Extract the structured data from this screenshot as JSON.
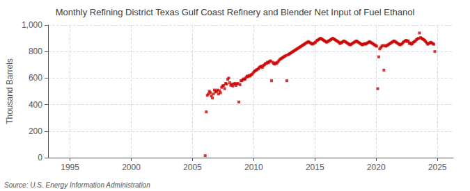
{
  "chart_data": {
    "type": "scatter",
    "title": "Monthly Refining District Texas Gulf Coast Refinery and Blender Net Input of Fuel Ethanol",
    "ylabel": "Thousand Barrels",
    "source": "Source: U.S. Energy Information Administration",
    "color": "#cc0000",
    "marker": "square",
    "grid": true,
    "xlim": [
      1993.2,
      2026.3
    ],
    "xticks": [
      1995,
      2000,
      2005,
      2010,
      2015,
      2020,
      2025
    ],
    "ylim": [
      0,
      1000
    ],
    "yticks": [
      0,
      200,
      400,
      600,
      800,
      {
        "value": 1000,
        "label": "1,000"
      }
    ],
    "x": [
      2006.04,
      2006.13,
      2006.21,
      2006.29,
      2006.38,
      2006.46,
      2006.54,
      2006.63,
      2006.71,
      2006.79,
      2006.88,
      2006.96,
      2007.04,
      2007.13,
      2007.21,
      2007.29,
      2007.38,
      2007.46,
      2007.54,
      2007.63,
      2007.71,
      2007.79,
      2007.88,
      2007.96,
      2008.04,
      2008.13,
      2008.21,
      2008.29,
      2008.38,
      2008.46,
      2008.54,
      2008.63,
      2008.71,
      2008.79,
      2008.88,
      2008.96,
      2009.04,
      2009.13,
      2009.21,
      2009.29,
      2009.38,
      2009.46,
      2009.54,
      2009.63,
      2009.71,
      2009.79,
      2009.88,
      2009.96,
      2010.04,
      2010.13,
      2010.21,
      2010.29,
      2010.38,
      2010.46,
      2010.54,
      2010.63,
      2010.71,
      2010.79,
      2010.88,
      2010.96,
      2011.04,
      2011.13,
      2011.21,
      2011.29,
      2011.38,
      2011.46,
      2011.54,
      2011.63,
      2011.71,
      2011.79,
      2011.88,
      2011.96,
      2012.04,
      2012.13,
      2012.21,
      2012.29,
      2012.38,
      2012.46,
      2012.54,
      2012.63,
      2012.71,
      2012.79,
      2012.88,
      2012.96,
      2013.04,
      2013.13,
      2013.21,
      2013.29,
      2013.38,
      2013.46,
      2013.54,
      2013.63,
      2013.71,
      2013.79,
      2013.88,
      2013.96,
      2014.04,
      2014.13,
      2014.21,
      2014.29,
      2014.38,
      2014.46,
      2014.54,
      2014.63,
      2014.71,
      2014.79,
      2014.88,
      2014.96,
      2015.04,
      2015.13,
      2015.21,
      2015.29,
      2015.38,
      2015.46,
      2015.54,
      2015.63,
      2015.71,
      2015.79,
      2015.88,
      2015.96,
      2016.04,
      2016.13,
      2016.21,
      2016.29,
      2016.38,
      2016.46,
      2016.54,
      2016.63,
      2016.71,
      2016.79,
      2016.88,
      2016.96,
      2017.04,
      2017.13,
      2017.21,
      2017.29,
      2017.38,
      2017.46,
      2017.54,
      2017.63,
      2017.71,
      2017.79,
      2017.88,
      2017.96,
      2018.04,
      2018.13,
      2018.21,
      2018.29,
      2018.38,
      2018.46,
      2018.54,
      2018.63,
      2018.71,
      2018.79,
      2018.88,
      2018.96,
      2019.04,
      2019.13,
      2019.21,
      2019.29,
      2019.38,
      2019.46,
      2019.54,
      2019.63,
      2019.71,
      2019.79,
      2019.88,
      2019.96,
      2020.04,
      2020.13,
      2020.21,
      2020.29,
      2020.38,
      2020.46,
      2020.54,
      2020.63,
      2020.71,
      2020.79,
      2020.88,
      2020.96,
      2021.04,
      2021.13,
      2021.21,
      2021.29,
      2021.38,
      2021.46,
      2021.54,
      2021.63,
      2021.71,
      2021.79,
      2021.88,
      2021.96,
      2022.04,
      2022.13,
      2022.21,
      2022.29,
      2022.38,
      2022.46,
      2022.54,
      2022.63,
      2022.71,
      2022.79,
      2022.88,
      2022.96,
      2023.04,
      2023.13,
      2023.21,
      2023.29,
      2023.38,
      2023.46,
      2023.54,
      2023.63,
      2023.71,
      2023.79,
      2023.88,
      2023.96,
      2024.04,
      2024.13,
      2024.21,
      2024.29,
      2024.38,
      2024.46,
      2024.54,
      2024.63,
      2024.71,
      2024.79
    ],
    "values": [
      15,
      345,
      470,
      480,
      500,
      490,
      465,
      450,
      480,
      510,
      495,
      500,
      510,
      480,
      505,
      490,
      530,
      540,
      545,
      520,
      560,
      555,
      590,
      600,
      565,
      545,
      555,
      540,
      555,
      560,
      545,
      555,
      560,
      420,
      550,
      580,
      580,
      590,
      595,
      590,
      605,
      615,
      610,
      620,
      615,
      625,
      630,
      640,
      650,
      655,
      660,
      665,
      670,
      680,
      685,
      690,
      680,
      695,
      700,
      710,
      710,
      720,
      715,
      725,
      730,
      580,
      720,
      710,
      705,
      715,
      710,
      720,
      730,
      740,
      745,
      750,
      755,
      760,
      765,
      770,
      580,
      775,
      780,
      785,
      790,
      795,
      800,
      805,
      810,
      815,
      820,
      825,
      830,
      835,
      840,
      845,
      850,
      855,
      860,
      865,
      870,
      875,
      870,
      865,
      860,
      855,
      860,
      865,
      870,
      880,
      885,
      890,
      895,
      900,
      895,
      890,
      885,
      880,
      875,
      870,
      875,
      880,
      885,
      890,
      895,
      900,
      895,
      890,
      885,
      880,
      875,
      870,
      860,
      865,
      870,
      875,
      880,
      875,
      870,
      865,
      860,
      855,
      850,
      855,
      860,
      865,
      870,
      875,
      880,
      875,
      870,
      865,
      860,
      855,
      850,
      855,
      860,
      855,
      860,
      865,
      870,
      875,
      870,
      865,
      860,
      855,
      850,
      845,
      840,
      520,
      760,
      820,
      830,
      840,
      845,
      660,
      845,
      840,
      845,
      850,
      855,
      860,
      865,
      870,
      875,
      880,
      875,
      870,
      865,
      860,
      855,
      850,
      855,
      860,
      870,
      875,
      880,
      885,
      875,
      880,
      860,
      865,
      855,
      860,
      870,
      875,
      880,
      890,
      895,
      900,
      940,
      905,
      900,
      895,
      890,
      885,
      875,
      865,
      855,
      860,
      865,
      870,
      865,
      860,
      855,
      800
    ]
  }
}
